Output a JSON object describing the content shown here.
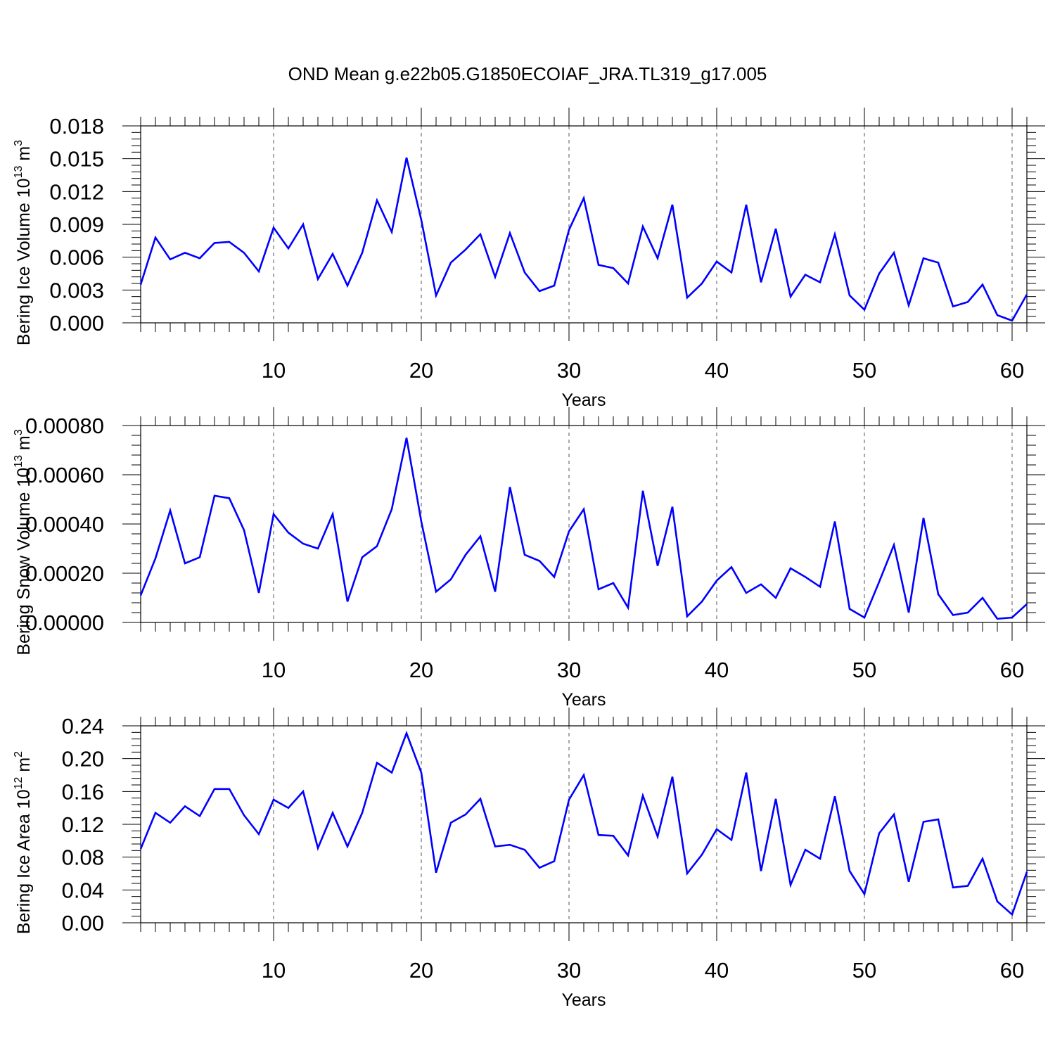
{
  "title": "OND Mean g.e22b05.G1850ECOIAF_JRA.TL319_g17.005",
  "colors": {
    "line": "#0000ff",
    "axes": "#000000",
    "grid": "#555555"
  },
  "chart_data": [
    {
      "type": "line",
      "name": "ice-volume",
      "ylabel_main": "Bering Ice Volume 10",
      "ylabel_sup1": "13",
      "ylabel_unit": " m",
      "ylabel_sup2": "3",
      "xlabel": "Years",
      "xlim": [
        1,
        61
      ],
      "xticks": [
        10,
        20,
        30,
        40,
        50,
        60
      ],
      "ylim": [
        0,
        0.018
      ],
      "yticks": [
        "0.000",
        "0.003",
        "0.006",
        "0.009",
        "0.012",
        "0.015",
        "0.018"
      ],
      "x": [
        1,
        2,
        3,
        4,
        5,
        6,
        7,
        8,
        9,
        10,
        11,
        12,
        13,
        14,
        15,
        16,
        17,
        18,
        19,
        20,
        21,
        22,
        23,
        24,
        25,
        26,
        27,
        28,
        29,
        30,
        31,
        32,
        33,
        34,
        35,
        36,
        37,
        38,
        39,
        40,
        41,
        42,
        43,
        44,
        45,
        46,
        47,
        48,
        49,
        50,
        51,
        52,
        53,
        54,
        55,
        56,
        57,
        58,
        59,
        60,
        61
      ],
      "values": [
        0.0035,
        0.0078,
        0.0058,
        0.0064,
        0.0059,
        0.0073,
        0.0074,
        0.0064,
        0.0047,
        0.0087,
        0.0068,
        0.009,
        0.004,
        0.0063,
        0.0034,
        0.0064,
        0.0112,
        0.0083,
        0.0151,
        0.0094,
        0.0025,
        0.0055,
        0.0067,
        0.0081,
        0.0042,
        0.0082,
        0.0046,
        0.0029,
        0.0034,
        0.0085,
        0.0114,
        0.0053,
        0.005,
        0.0036,
        0.0088,
        0.0059,
        0.0108,
        0.0023,
        0.0036,
        0.0056,
        0.0046,
        0.0108,
        0.0037,
        0.0086,
        0.0024,
        0.0044,
        0.0037,
        0.0081,
        0.0025,
        0.0012,
        0.0045,
        0.0064,
        0.0016,
        0.0059,
        0.0055,
        0.0015,
        0.0019,
        0.0035,
        0.0007,
        0.0002,
        0.0026
      ]
    },
    {
      "type": "line",
      "name": "snow-volume",
      "ylabel_main": "Bering Snow Volume 10",
      "ylabel_sup1": "13",
      "ylabel_unit": " m",
      "ylabel_sup2": "3",
      "xlabel": "Years",
      "xlim": [
        1,
        61
      ],
      "xticks": [
        10,
        20,
        30,
        40,
        50,
        60
      ],
      "ylim": [
        0,
        0.0008
      ],
      "yticks": [
        "0.00000",
        "0.00020",
        "0.00040",
        "0.00060",
        "0.00080"
      ],
      "x": [
        1,
        2,
        3,
        4,
        5,
        6,
        7,
        8,
        9,
        10,
        11,
        12,
        13,
        14,
        15,
        16,
        17,
        18,
        19,
        20,
        21,
        22,
        23,
        24,
        25,
        26,
        27,
        28,
        29,
        30,
        31,
        32,
        33,
        34,
        35,
        36,
        37,
        38,
        39,
        40,
        41,
        42,
        43,
        44,
        45,
        46,
        47,
        48,
        49,
        50,
        51,
        52,
        53,
        54,
        55,
        56,
        57,
        58,
        59,
        60,
        61
      ],
      "values": [
        0.00011,
        0.00026,
        0.000455,
        0.00024,
        0.000265,
        0.000515,
        0.000505,
        0.000375,
        0.00012,
        0.00044,
        0.000365,
        0.00032,
        0.0003,
        0.00044,
        8.5e-05,
        0.000265,
        0.00031,
        0.00046,
        0.00075,
        0.00041,
        0.000125,
        0.000175,
        0.000275,
        0.00035,
        0.000125,
        0.00055,
        0.000275,
        0.00025,
        0.000185,
        0.00037,
        0.00046,
        0.000135,
        0.00016,
        6e-05,
        0.000535,
        0.00023,
        0.00047,
        2.5e-05,
        8.5e-05,
        0.00017,
        0.000225,
        0.00012,
        0.000155,
        0.0001,
        0.00022,
        0.000185,
        0.000145,
        0.00041,
        5.5e-05,
        2e-05,
        0.000165,
        0.000315,
        4e-05,
        0.000425,
        0.000115,
        3e-05,
        4e-05,
        0.0001,
        1.5e-05,
        2e-05,
        7.5e-05
      ]
    },
    {
      "type": "line",
      "name": "ice-area",
      "ylabel_main": "Bering Ice Area 10",
      "ylabel_sup1": "12",
      "ylabel_unit": " m",
      "ylabel_sup2": "2",
      "xlabel": "Years",
      "xlim": [
        1,
        61
      ],
      "xticks": [
        10,
        20,
        30,
        40,
        50,
        60
      ],
      "ylim": [
        0,
        0.24
      ],
      "yticks": [
        "0.00",
        "0.04",
        "0.08",
        "0.12",
        "0.16",
        "0.20",
        "0.24"
      ],
      "x": [
        1,
        2,
        3,
        4,
        5,
        6,
        7,
        8,
        9,
        10,
        11,
        12,
        13,
        14,
        15,
        16,
        17,
        18,
        19,
        20,
        21,
        22,
        23,
        24,
        25,
        26,
        27,
        28,
        29,
        30,
        31,
        32,
        33,
        34,
        35,
        36,
        37,
        38,
        39,
        40,
        41,
        42,
        43,
        44,
        45,
        46,
        47,
        48,
        49,
        50,
        51,
        52,
        53,
        54,
        55,
        56,
        57,
        58,
        59,
        60,
        61
      ],
      "values": [
        0.09,
        0.134,
        0.122,
        0.142,
        0.13,
        0.163,
        0.163,
        0.131,
        0.108,
        0.15,
        0.14,
        0.16,
        0.091,
        0.134,
        0.093,
        0.134,
        0.195,
        0.183,
        0.231,
        0.183,
        0.061,
        0.122,
        0.132,
        0.151,
        0.093,
        0.095,
        0.089,
        0.067,
        0.075,
        0.15,
        0.18,
        0.107,
        0.106,
        0.082,
        0.155,
        0.105,
        0.178,
        0.06,
        0.083,
        0.114,
        0.101,
        0.183,
        0.063,
        0.151,
        0.046,
        0.089,
        0.078,
        0.154,
        0.063,
        0.035,
        0.109,
        0.132,
        0.05,
        0.123,
        0.126,
        0.043,
        0.045,
        0.078,
        0.026,
        0.01,
        0.062
      ]
    }
  ]
}
